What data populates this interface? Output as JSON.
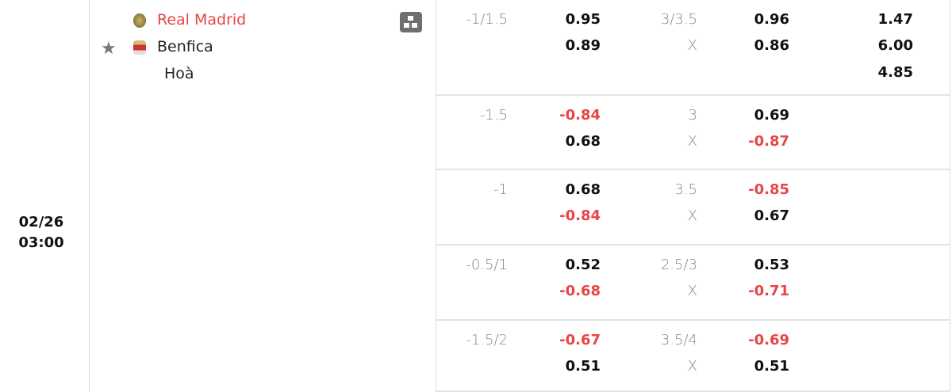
{
  "match": {
    "date": "02/26",
    "time": "03:00",
    "home": "Real Madrid",
    "away": "Benfica",
    "draw": "Hoà",
    "home_color": "#e84545"
  },
  "rows": [
    {
      "hdp": "-1/1.5",
      "hdp_home": "0.95",
      "hdp_away": "0.89",
      "ou": "3/3.5",
      "ou_x": "X",
      "ou_over": "0.96",
      "ou_under": "0.86",
      "x1": "1.47",
      "x2": "6.00",
      "xd": "4.85"
    },
    {
      "hdp": "-1.5",
      "hdp_home": "-0.84",
      "hdp_away": "0.68",
      "ou": "3",
      "ou_x": "X",
      "ou_over": "0.69",
      "ou_under": "-0.87"
    },
    {
      "hdp": "-1",
      "hdp_home": "0.68",
      "hdp_away": "-0.84",
      "ou": "3.5",
      "ou_x": "X",
      "ou_over": "-0.85",
      "ou_under": "0.67"
    },
    {
      "hdp": "-0.5/1",
      "hdp_home": "0.52",
      "hdp_away": "-0.68",
      "ou": "2.5/3",
      "ou_x": "X",
      "ou_over": "0.53",
      "ou_under": "-0.71"
    },
    {
      "hdp": "-1.5/2",
      "hdp_home": "-0.67",
      "hdp_away": "0.51",
      "ou": "3.5/4",
      "ou_x": "X",
      "ou_over": "-0.69",
      "ou_under": "0.51"
    }
  ],
  "colors": {
    "negative": "#e84545"
  }
}
